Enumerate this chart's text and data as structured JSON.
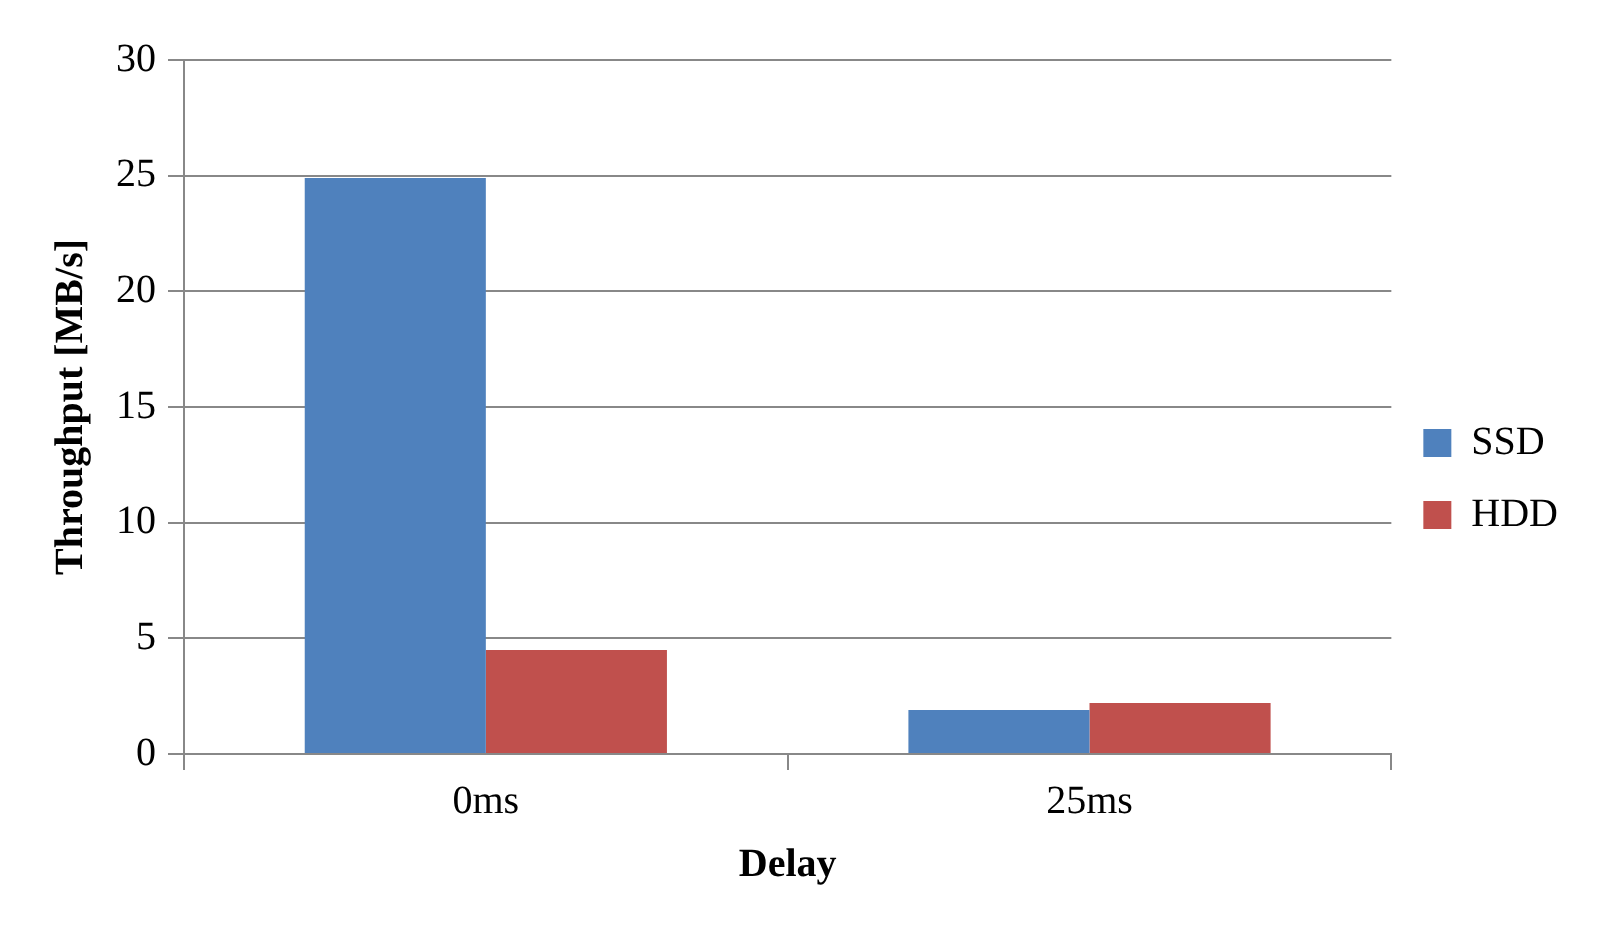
{
  "chart_data": {
    "type": "bar",
    "xlabel": "Delay",
    "ylabel": "Throughput [MB/s]",
    "categories": [
      "0ms",
      "25ms"
    ],
    "series": [
      {
        "name": "SSD",
        "color": "#4f81bd",
        "values": [
          24.9,
          1.9
        ]
      },
      {
        "name": "HDD",
        "color": "#c0504d",
        "values": [
          4.5,
          2.2
        ]
      }
    ],
    "ylim": [
      0,
      30
    ],
    "yticks": [
      0,
      5,
      10,
      15,
      20,
      25,
      30
    ],
    "grid": "y",
    "legend": "right"
  }
}
